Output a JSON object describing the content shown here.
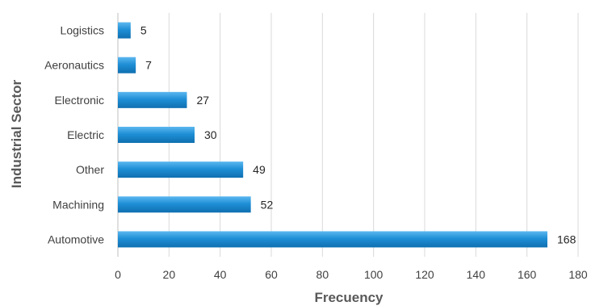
{
  "chart_data": {
    "type": "bar",
    "orientation": "horizontal",
    "categories": [
      "Logistics",
      "Aeronautics",
      "Electronic",
      "Electric",
      "Other",
      "Machining",
      "Automotive"
    ],
    "values": [
      5,
      7,
      27,
      30,
      49,
      52,
      168
    ],
    "xlabel": "Frecuency",
    "ylabel": "Industrial Sector",
    "xlim": [
      0,
      180
    ],
    "xticks": [
      "0",
      "20",
      "40",
      "60",
      "80",
      "100",
      "120",
      "140",
      "160",
      "180"
    ],
    "grid": "vertical",
    "bar_color": "#1f8fd6",
    "data_labels": true
  }
}
